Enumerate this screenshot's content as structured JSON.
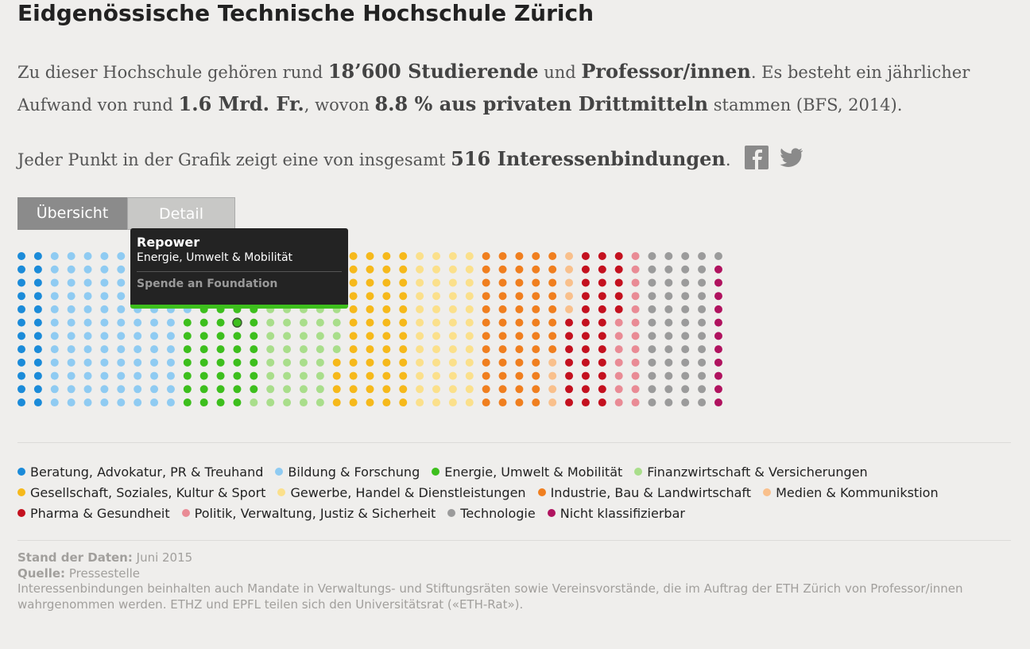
{
  "header": {
    "title": "Eidgenössische Technische Hochschule Zürich",
    "intro": [
      "Zu dieser Hochschule gehören rund ",
      "18’600 Studierende",
      " und ",
      "Professor/innen",
      ". Es besteht ein jährlicher Aufwand von rund ",
      "1.6 Mrd. Fr.",
      ", wovon ",
      "8.8 % aus privaten Drittmitteln",
      " stammen (BFS, 2014)."
    ],
    "count_line": [
      "Jeder Punkt in der Grafik zeigt eine von insgesamt ",
      "516 Interessenbindungen",
      "."
    ]
  },
  "tabs": [
    "Übersicht",
    "Detail"
  ],
  "chart_data": {
    "type": "waffle",
    "categories": [
      "Beratung, Advokatur, PR & Treuhand",
      "Bildung & Forschung",
      "Energie, Umwelt & Mobilität",
      "Finanzwirtschaft & Versicherungen",
      "Gesellschaft, Soziales, Kultur & Sport",
      "Gewerbe, Handel & Dienstleistungen",
      "Industrie, Bau & Landwirtschaft",
      "Medien & Kommunikstion",
      "Pharma & Gesundheit",
      "Politik, Verwaltung, Justiz & Sicherheit",
      "Technologie",
      "Nicht klassifizierbar"
    ],
    "values": [
      24,
      101,
      54,
      57,
      52,
      48,
      56,
      9,
      36,
      19,
      49,
      11
    ],
    "colors": [
      "#1b8bd9",
      "#8fcbf2",
      "#3dbf1d",
      "#a9de8b",
      "#f6b91b",
      "#fbe08b",
      "#f07f1f",
      "#f9c08c",
      "#c4111f",
      "#e98b95",
      "#9b9b9b",
      "#b0135f"
    ],
    "tooltip": {
      "title": "Repower",
      "category": "Energie, Umwelt & Mobilität",
      "kind": "Spende an Foundation"
    }
  },
  "footer": {
    "date_label": "Stand der Daten:",
    "date": "Juni 2015",
    "source_label": "Quelle:",
    "source": "Pressestelle",
    "note": "Interessenbindungen beinhalten auch Mandate in Verwaltungs- und Stiftungsräten sowie Vereinsvorstände, die im Auftrag der ETH Zürich von Professor/innen wahrgenommen werden. ETHZ und EPFL teilen sich den Universitätsrat («ETH-Rat»)."
  }
}
